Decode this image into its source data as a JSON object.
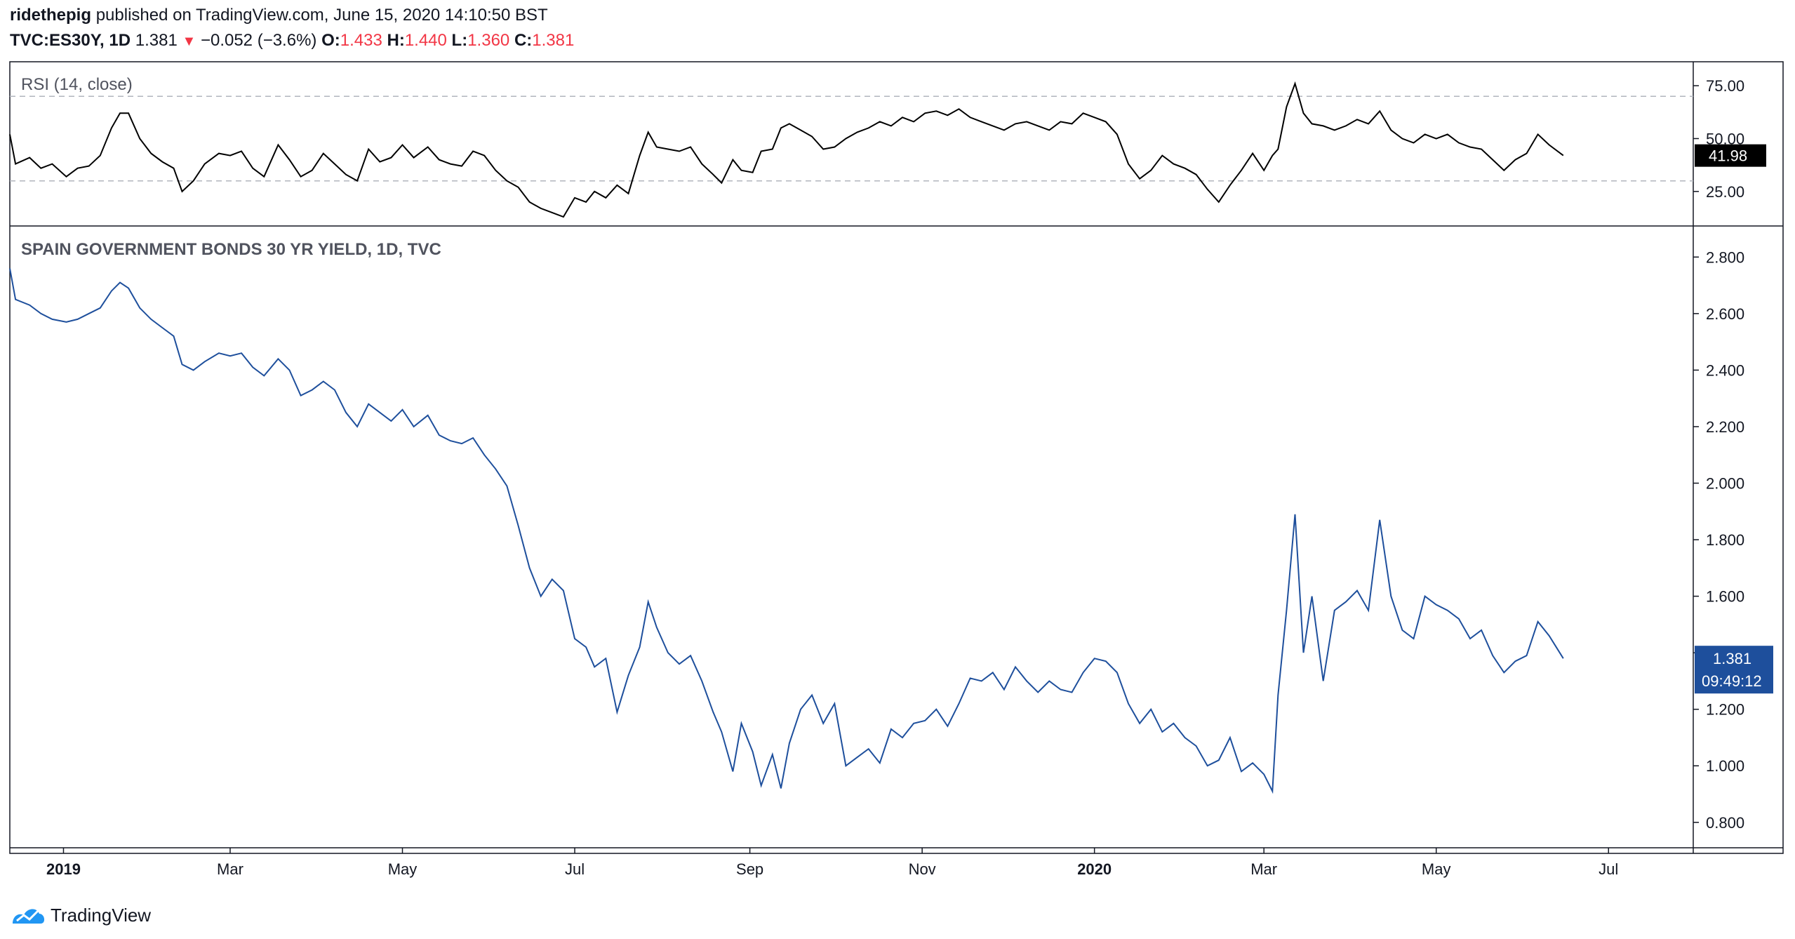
{
  "header": {
    "author": "ridethepig",
    "published": "published on TradingView.com, June 15, 2020 14:10:50 BST",
    "symbol": "TVC:ES30Y, 1D",
    "last": "1.381",
    "change": "−0.052 (−3.6%)",
    "o_label": "O:",
    "o_value": "1.433",
    "h_label": "H:",
    "h_value": "1.440",
    "l_label": "L:",
    "l_value": "1.360",
    "c_label": "C:",
    "c_value": "1.381"
  },
  "colors": {
    "price": "#1e4f9c",
    "rsi": "#000000",
    "down": "#f23645",
    "grid": "#b2b5be"
  },
  "icons": [
    "tradingview-logo-icon",
    "down-triangle-icon"
  ],
  "footer": {
    "brand": "TradingView"
  },
  "chart_data": [
    {
      "type": "line",
      "title": "RSI (14, close)",
      "ylim": [
        10,
        85
      ],
      "yticks": [
        25,
        50,
        75
      ],
      "ytick_labels": [
        "25.00",
        "50.00",
        "75.00"
      ],
      "bands": [
        30,
        70
      ],
      "last_label": "41.98",
      "x_range": [
        "2018-12-13",
        "2020-07-31"
      ],
      "points": [
        [
          "2018-12-13",
          52
        ],
        [
          "2018-12-15",
          38
        ],
        [
          "2018-12-20",
          41
        ],
        [
          "2018-12-24",
          36
        ],
        [
          "2018-12-28",
          38
        ],
        [
          "2019-01-02",
          32
        ],
        [
          "2019-01-06",
          36
        ],
        [
          "2019-01-10",
          37
        ],
        [
          "2019-01-14",
          42
        ],
        [
          "2019-01-18",
          55
        ],
        [
          "2019-01-21",
          62
        ],
        [
          "2019-01-24",
          62
        ],
        [
          "2019-01-28",
          50
        ],
        [
          "2019-02-01",
          43
        ],
        [
          "2019-02-05",
          39
        ],
        [
          "2019-02-09",
          36
        ],
        [
          "2019-02-12",
          25
        ],
        [
          "2019-02-16",
          30
        ],
        [
          "2019-02-20",
          38
        ],
        [
          "2019-02-25",
          43
        ],
        [
          "2019-03-01",
          42
        ],
        [
          "2019-03-05",
          44
        ],
        [
          "2019-03-09",
          36
        ],
        [
          "2019-03-13",
          32
        ],
        [
          "2019-03-18",
          47
        ],
        [
          "2019-03-22",
          40
        ],
        [
          "2019-03-26",
          32
        ],
        [
          "2019-03-30",
          35
        ],
        [
          "2019-04-03",
          43
        ],
        [
          "2019-04-07",
          38
        ],
        [
          "2019-04-11",
          33
        ],
        [
          "2019-04-15",
          30
        ],
        [
          "2019-04-19",
          45
        ],
        [
          "2019-04-23",
          39
        ],
        [
          "2019-04-27",
          41
        ],
        [
          "2019-05-01",
          47
        ],
        [
          "2019-05-05",
          41
        ],
        [
          "2019-05-10",
          46
        ],
        [
          "2019-05-14",
          40
        ],
        [
          "2019-05-18",
          38
        ],
        [
          "2019-05-22",
          37
        ],
        [
          "2019-05-26",
          44
        ],
        [
          "2019-05-30",
          42
        ],
        [
          "2019-06-03",
          35
        ],
        [
          "2019-06-07",
          30
        ],
        [
          "2019-06-11",
          27
        ],
        [
          "2019-06-15",
          20
        ],
        [
          "2019-06-19",
          17
        ],
        [
          "2019-06-23",
          15
        ],
        [
          "2019-06-27",
          13
        ],
        [
          "2019-07-01",
          22
        ],
        [
          "2019-07-05",
          20
        ],
        [
          "2019-07-08",
          25
        ],
        [
          "2019-07-12",
          22
        ],
        [
          "2019-07-16",
          28
        ],
        [
          "2019-07-20",
          24
        ],
        [
          "2019-07-24",
          42
        ],
        [
          "2019-07-27",
          53
        ],
        [
          "2019-07-30",
          46
        ],
        [
          "2019-08-03",
          45
        ],
        [
          "2019-08-07",
          44
        ],
        [
          "2019-08-11",
          46
        ],
        [
          "2019-08-15",
          38
        ],
        [
          "2019-08-19",
          33
        ],
        [
          "2019-08-22",
          29
        ],
        [
          "2019-08-26",
          40
        ],
        [
          "2019-08-29",
          35
        ],
        [
          "2019-09-02",
          34
        ],
        [
          "2019-09-05",
          44
        ],
        [
          "2019-09-09",
          45
        ],
        [
          "2019-09-12",
          55
        ],
        [
          "2019-09-15",
          57
        ],
        [
          "2019-09-19",
          54
        ],
        [
          "2019-09-23",
          51
        ],
        [
          "2019-09-27",
          45
        ],
        [
          "2019-10-01",
          46
        ],
        [
          "2019-10-05",
          50
        ],
        [
          "2019-10-09",
          53
        ],
        [
          "2019-10-13",
          55
        ],
        [
          "2019-10-17",
          58
        ],
        [
          "2019-10-21",
          56
        ],
        [
          "2019-10-25",
          60
        ],
        [
          "2019-10-29",
          58
        ],
        [
          "2019-11-02",
          62
        ],
        [
          "2019-11-06",
          63
        ],
        [
          "2019-11-10",
          61
        ],
        [
          "2019-11-14",
          64
        ],
        [
          "2019-11-18",
          60
        ],
        [
          "2019-11-22",
          58
        ],
        [
          "2019-11-26",
          56
        ],
        [
          "2019-11-30",
          54
        ],
        [
          "2019-12-04",
          57
        ],
        [
          "2019-12-08",
          58
        ],
        [
          "2019-12-12",
          56
        ],
        [
          "2019-12-16",
          54
        ],
        [
          "2019-12-20",
          58
        ],
        [
          "2019-12-24",
          57
        ],
        [
          "2019-12-28",
          62
        ],
        [
          "2020-01-01",
          60
        ],
        [
          "2020-01-05",
          58
        ],
        [
          "2020-01-09",
          52
        ],
        [
          "2020-01-13",
          38
        ],
        [
          "2020-01-17",
          31
        ],
        [
          "2020-01-21",
          35
        ],
        [
          "2020-01-25",
          42
        ],
        [
          "2020-01-29",
          38
        ],
        [
          "2020-02-02",
          36
        ],
        [
          "2020-02-06",
          33
        ],
        [
          "2020-02-10",
          26
        ],
        [
          "2020-02-14",
          20
        ],
        [
          "2020-02-18",
          28
        ],
        [
          "2020-02-22",
          35
        ],
        [
          "2020-02-26",
          43
        ],
        [
          "2020-03-01",
          35
        ],
        [
          "2020-03-04",
          42
        ],
        [
          "2020-03-06",
          45
        ],
        [
          "2020-03-09",
          65
        ],
        [
          "2020-03-12",
          76
        ],
        [
          "2020-03-15",
          62
        ],
        [
          "2020-03-18",
          57
        ],
        [
          "2020-03-22",
          56
        ],
        [
          "2020-03-26",
          54
        ],
        [
          "2020-03-30",
          56
        ],
        [
          "2020-04-03",
          59
        ],
        [
          "2020-04-07",
          57
        ],
        [
          "2020-04-11",
          63
        ],
        [
          "2020-04-15",
          54
        ],
        [
          "2020-04-19",
          50
        ],
        [
          "2020-04-23",
          48
        ],
        [
          "2020-04-27",
          52
        ],
        [
          "2020-05-01",
          50
        ],
        [
          "2020-05-05",
          52
        ],
        [
          "2020-05-09",
          48
        ],
        [
          "2020-05-13",
          46
        ],
        [
          "2020-05-17",
          45
        ],
        [
          "2020-05-21",
          40
        ],
        [
          "2020-05-25",
          35
        ],
        [
          "2020-05-29",
          40
        ],
        [
          "2020-06-02",
          43
        ],
        [
          "2020-06-06",
          52
        ],
        [
          "2020-06-10",
          47
        ],
        [
          "2020-06-15",
          41.98
        ]
      ]
    },
    {
      "type": "line",
      "title": "SPAIN GOVERNMENT BONDS 30 YR YIELD, 1D, TVC",
      "ylim": [
        0.72,
        2.9
      ],
      "yticks": [
        0.8,
        1.0,
        1.2,
        1.4,
        1.6,
        1.8,
        2.0,
        2.2,
        2.4,
        2.6,
        2.8
      ],
      "ytick_labels": [
        "0.800",
        "1.000",
        "1.200",
        "1.400",
        "1.600",
        "1.800",
        "2.000",
        "2.200",
        "2.400",
        "2.600",
        "2.800"
      ],
      "last_label": "1.381",
      "countdown": "09:49:12",
      "xtick_labels": [
        "2019",
        "Mar",
        "May",
        "Jul",
        "Sep",
        "Nov",
        "2020",
        "Mar",
        "May",
        "Jul"
      ],
      "xticks": [
        "2019-01-01",
        "2019-03-01",
        "2019-05-01",
        "2019-07-01",
        "2019-09-01",
        "2019-11-01",
        "2020-01-01",
        "2020-03-01",
        "2020-05-01",
        "2020-07-01"
      ],
      "bold_xticks": [
        "2019",
        "2020"
      ],
      "x_range": [
        "2018-12-13",
        "2020-07-31"
      ],
      "points": [
        [
          "2018-12-13",
          2.76
        ],
        [
          "2018-12-15",
          2.65
        ],
        [
          "2018-12-20",
          2.63
        ],
        [
          "2018-12-24",
          2.6
        ],
        [
          "2018-12-28",
          2.58
        ],
        [
          "2019-01-02",
          2.57
        ],
        [
          "2019-01-06",
          2.58
        ],
        [
          "2019-01-10",
          2.6
        ],
        [
          "2019-01-14",
          2.62
        ],
        [
          "2019-01-18",
          2.68
        ],
        [
          "2019-01-21",
          2.71
        ],
        [
          "2019-01-24",
          2.69
        ],
        [
          "2019-01-28",
          2.62
        ],
        [
          "2019-02-01",
          2.58
        ],
        [
          "2019-02-05",
          2.55
        ],
        [
          "2019-02-09",
          2.52
        ],
        [
          "2019-02-12",
          2.42
        ],
        [
          "2019-02-16",
          2.4
        ],
        [
          "2019-02-20",
          2.43
        ],
        [
          "2019-02-25",
          2.46
        ],
        [
          "2019-03-01",
          2.45
        ],
        [
          "2019-03-05",
          2.46
        ],
        [
          "2019-03-09",
          2.41
        ],
        [
          "2019-03-13",
          2.38
        ],
        [
          "2019-03-18",
          2.44
        ],
        [
          "2019-03-22",
          2.4
        ],
        [
          "2019-03-26",
          2.31
        ],
        [
          "2019-03-30",
          2.33
        ],
        [
          "2019-04-03",
          2.36
        ],
        [
          "2019-04-07",
          2.33
        ],
        [
          "2019-04-11",
          2.25
        ],
        [
          "2019-04-15",
          2.2
        ],
        [
          "2019-04-19",
          2.28
        ],
        [
          "2019-04-23",
          2.25
        ],
        [
          "2019-04-27",
          2.22
        ],
        [
          "2019-05-01",
          2.26
        ],
        [
          "2019-05-05",
          2.2
        ],
        [
          "2019-05-10",
          2.24
        ],
        [
          "2019-05-14",
          2.17
        ],
        [
          "2019-05-18",
          2.15
        ],
        [
          "2019-05-22",
          2.14
        ],
        [
          "2019-05-26",
          2.16
        ],
        [
          "2019-05-30",
          2.1
        ],
        [
          "2019-06-03",
          2.05
        ],
        [
          "2019-06-07",
          1.99
        ],
        [
          "2019-06-11",
          1.85
        ],
        [
          "2019-06-15",
          1.7
        ],
        [
          "2019-06-19",
          1.6
        ],
        [
          "2019-06-23",
          1.66
        ],
        [
          "2019-06-27",
          1.62
        ],
        [
          "2019-07-01",
          1.45
        ],
        [
          "2019-07-05",
          1.42
        ],
        [
          "2019-07-08",
          1.35
        ],
        [
          "2019-07-12",
          1.38
        ],
        [
          "2019-07-16",
          1.19
        ],
        [
          "2019-07-20",
          1.32
        ],
        [
          "2019-07-24",
          1.42
        ],
        [
          "2019-07-27",
          1.58
        ],
        [
          "2019-07-30",
          1.49
        ],
        [
          "2019-08-03",
          1.4
        ],
        [
          "2019-08-07",
          1.36
        ],
        [
          "2019-08-11",
          1.39
        ],
        [
          "2019-08-15",
          1.3
        ],
        [
          "2019-08-19",
          1.19
        ],
        [
          "2019-08-22",
          1.12
        ],
        [
          "2019-08-26",
          0.98
        ],
        [
          "2019-08-29",
          1.15
        ],
        [
          "2019-09-02",
          1.05
        ],
        [
          "2019-09-05",
          0.93
        ],
        [
          "2019-09-09",
          1.04
        ],
        [
          "2019-09-12",
          0.92
        ],
        [
          "2019-09-15",
          1.08
        ],
        [
          "2019-09-19",
          1.2
        ],
        [
          "2019-09-23",
          1.25
        ],
        [
          "2019-09-27",
          1.15
        ],
        [
          "2019-10-01",
          1.22
        ],
        [
          "2019-10-05",
          1.0
        ],
        [
          "2019-10-09",
          1.03
        ],
        [
          "2019-10-13",
          1.06
        ],
        [
          "2019-10-17",
          1.01
        ],
        [
          "2019-10-21",
          1.13
        ],
        [
          "2019-10-25",
          1.1
        ],
        [
          "2019-10-29",
          1.15
        ],
        [
          "2019-11-02",
          1.16
        ],
        [
          "2019-11-06",
          1.2
        ],
        [
          "2019-11-10",
          1.14
        ],
        [
          "2019-11-14",
          1.22
        ],
        [
          "2019-11-18",
          1.31
        ],
        [
          "2019-11-22",
          1.3
        ],
        [
          "2019-11-26",
          1.33
        ],
        [
          "2019-11-30",
          1.27
        ],
        [
          "2019-12-04",
          1.35
        ],
        [
          "2019-12-08",
          1.3
        ],
        [
          "2019-12-12",
          1.26
        ],
        [
          "2019-12-16",
          1.3
        ],
        [
          "2019-12-20",
          1.27
        ],
        [
          "2019-12-24",
          1.26
        ],
        [
          "2019-12-28",
          1.33
        ],
        [
          "2020-01-01",
          1.38
        ],
        [
          "2020-01-05",
          1.37
        ],
        [
          "2020-01-09",
          1.33
        ],
        [
          "2020-01-13",
          1.22
        ],
        [
          "2020-01-17",
          1.15
        ],
        [
          "2020-01-21",
          1.2
        ],
        [
          "2020-01-25",
          1.12
        ],
        [
          "2020-01-29",
          1.15
        ],
        [
          "2020-02-02",
          1.1
        ],
        [
          "2020-02-06",
          1.07
        ],
        [
          "2020-02-10",
          1.0
        ],
        [
          "2020-02-14",
          1.02
        ],
        [
          "2020-02-18",
          1.1
        ],
        [
          "2020-02-22",
          0.98
        ],
        [
          "2020-02-26",
          1.01
        ],
        [
          "2020-03-01",
          0.97
        ],
        [
          "2020-03-04",
          0.91
        ],
        [
          "2020-03-06",
          1.25
        ],
        [
          "2020-03-09",
          1.55
        ],
        [
          "2020-03-12",
          1.89
        ],
        [
          "2020-03-15",
          1.4
        ],
        [
          "2020-03-18",
          1.6
        ],
        [
          "2020-03-22",
          1.3
        ],
        [
          "2020-03-26",
          1.55
        ],
        [
          "2020-03-30",
          1.58
        ],
        [
          "2020-04-03",
          1.62
        ],
        [
          "2020-04-07",
          1.55
        ],
        [
          "2020-04-11",
          1.87
        ],
        [
          "2020-04-15",
          1.6
        ],
        [
          "2020-04-19",
          1.48
        ],
        [
          "2020-04-23",
          1.45
        ],
        [
          "2020-04-27",
          1.6
        ],
        [
          "2020-05-01",
          1.57
        ],
        [
          "2020-05-05",
          1.55
        ],
        [
          "2020-05-09",
          1.52
        ],
        [
          "2020-05-13",
          1.45
        ],
        [
          "2020-05-17",
          1.48
        ],
        [
          "2020-05-21",
          1.39
        ],
        [
          "2020-05-25",
          1.33
        ],
        [
          "2020-05-29",
          1.37
        ],
        [
          "2020-06-02",
          1.39
        ],
        [
          "2020-06-06",
          1.51
        ],
        [
          "2020-06-10",
          1.46
        ],
        [
          "2020-06-15",
          1.38
        ]
      ]
    }
  ]
}
